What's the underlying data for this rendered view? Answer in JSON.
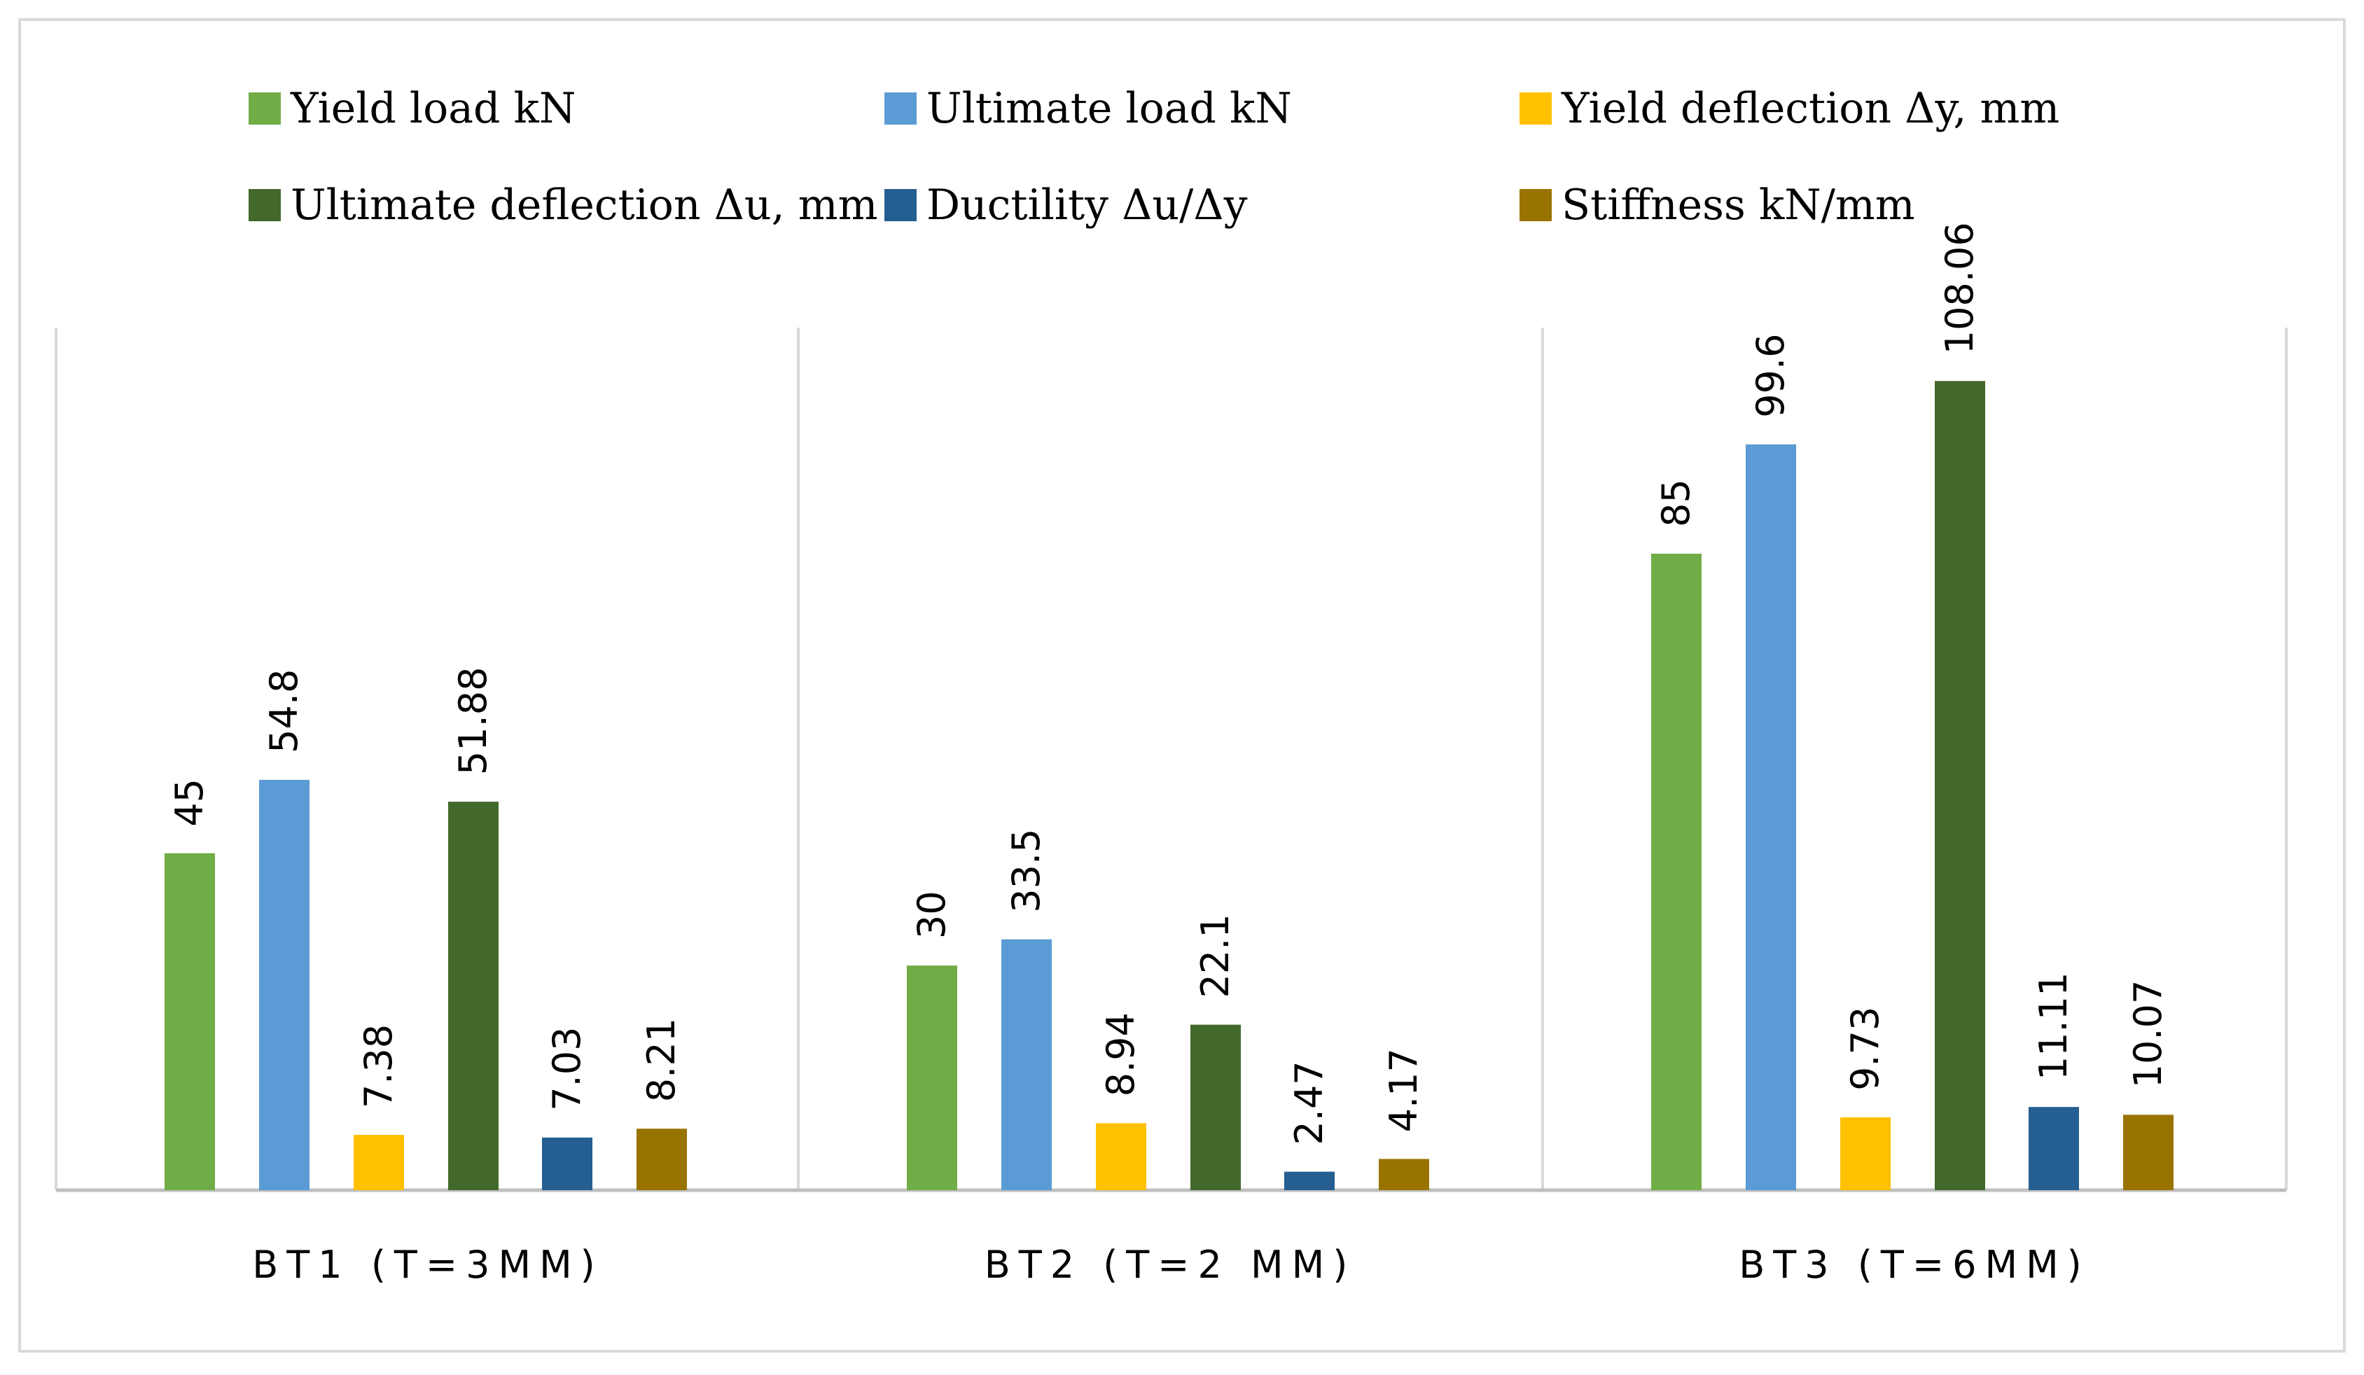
{
  "chart_data": {
    "type": "bar",
    "title": "",
    "xlabel": "",
    "ylabel": "",
    "ylim": [
      0,
      115
    ],
    "grid": false,
    "legend_position": "top",
    "categories": [
      "BT1  (T=3MM)",
      "BT2  (T=2  MM)",
      "BT3  (T=6MM)"
    ],
    "series": [
      {
        "name": "Yield load kN",
        "color": "#70AD47",
        "values": [
          45,
          30,
          85
        ],
        "labels": [
          "45",
          "30",
          "85"
        ]
      },
      {
        "name": "Ultimate load kN",
        "color": "#5B9BD5",
        "values": [
          54.8,
          33.5,
          99.6
        ],
        "labels": [
          "54.8",
          "33.5",
          "99.6"
        ]
      },
      {
        "name": "Yield deflection Δy, mm",
        "color": "#FFC000",
        "values": [
          7.38,
          8.94,
          9.73
        ],
        "labels": [
          "7.38",
          "8.94",
          "9.73"
        ]
      },
      {
        "name": "Ultimate deflection Δu, mm",
        "color": "#43682B",
        "values": [
          51.88,
          22.1,
          108.06
        ],
        "labels": [
          "51.88",
          "22.1",
          "108.06"
        ]
      },
      {
        "name": "Ductility Δu/Δy",
        "color": "#255E91",
        "values": [
          7.03,
          2.47,
          11.11
        ],
        "labels": [
          "7.03",
          "2.47",
          "11.11"
        ]
      },
      {
        "name": "Stiffness kN/mm",
        "color": "#997300",
        "values": [
          8.21,
          4.17,
          10.07
        ],
        "labels": [
          "8.21",
          "4.17",
          "10.07"
        ]
      }
    ]
  }
}
